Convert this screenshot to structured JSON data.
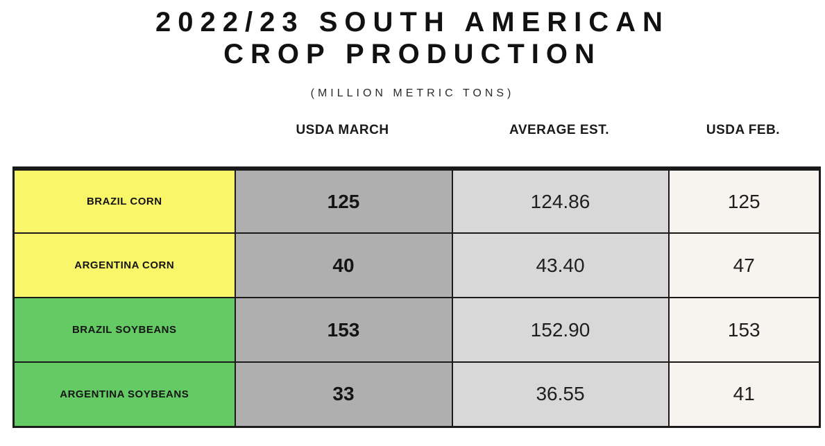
{
  "title": "2022/23 SOUTH AMERICAN CROP PRODUCTION",
  "subtitle": "(MILLION METRIC TONS)",
  "columns": [
    "USDA MARCH",
    "AVERAGE EST.",
    "USDA FEB."
  ],
  "rows": [
    {
      "label": "BRAZIL CORN",
      "march": "125",
      "avg": "124.86",
      "feb": "125",
      "label_bg": "#FAF669"
    },
    {
      "label": "ARGENTINA CORN",
      "march": "40",
      "avg": "43.40",
      "feb": "47",
      "label_bg": "#FAF669"
    },
    {
      "label": "BRAZIL SOYBEANS",
      "march": "153",
      "avg": "152.90",
      "feb": "153",
      "label_bg": "#63CA64"
    },
    {
      "label": "ARGENTINA SOYBEANS",
      "march": "33",
      "avg": "36.55",
      "feb": "41",
      "label_bg": "#63CA64"
    }
  ],
  "colors": {
    "corn_row_yellow": "#FAF669",
    "soybean_row_green": "#63CA64",
    "usda_march_gray": "#AFAFAF",
    "average_est_gray": "#D8D8D8",
    "usda_feb_offwhite": "#F7F4F0",
    "border_black": "#1a1a1a",
    "background_white": "#ffffff"
  },
  "chart_data": {
    "type": "table",
    "title": "2022/23 SOUTH AMERICAN CROP PRODUCTION",
    "subtitle": "(MILLION METRIC TONS)",
    "categories": [
      "BRAZIL CORN",
      "ARGENTINA CORN",
      "BRAZIL SOYBEANS",
      "ARGENTINA SOYBEANS"
    ],
    "series": [
      {
        "name": "USDA MARCH",
        "values": [
          125,
          40,
          153,
          33
        ]
      },
      {
        "name": "AVERAGE EST.",
        "values": [
          124.86,
          43.4,
          152.9,
          36.55
        ]
      },
      {
        "name": "USDA FEB.",
        "values": [
          125,
          47,
          153,
          41
        ]
      }
    ],
    "units": "million metric tons"
  }
}
